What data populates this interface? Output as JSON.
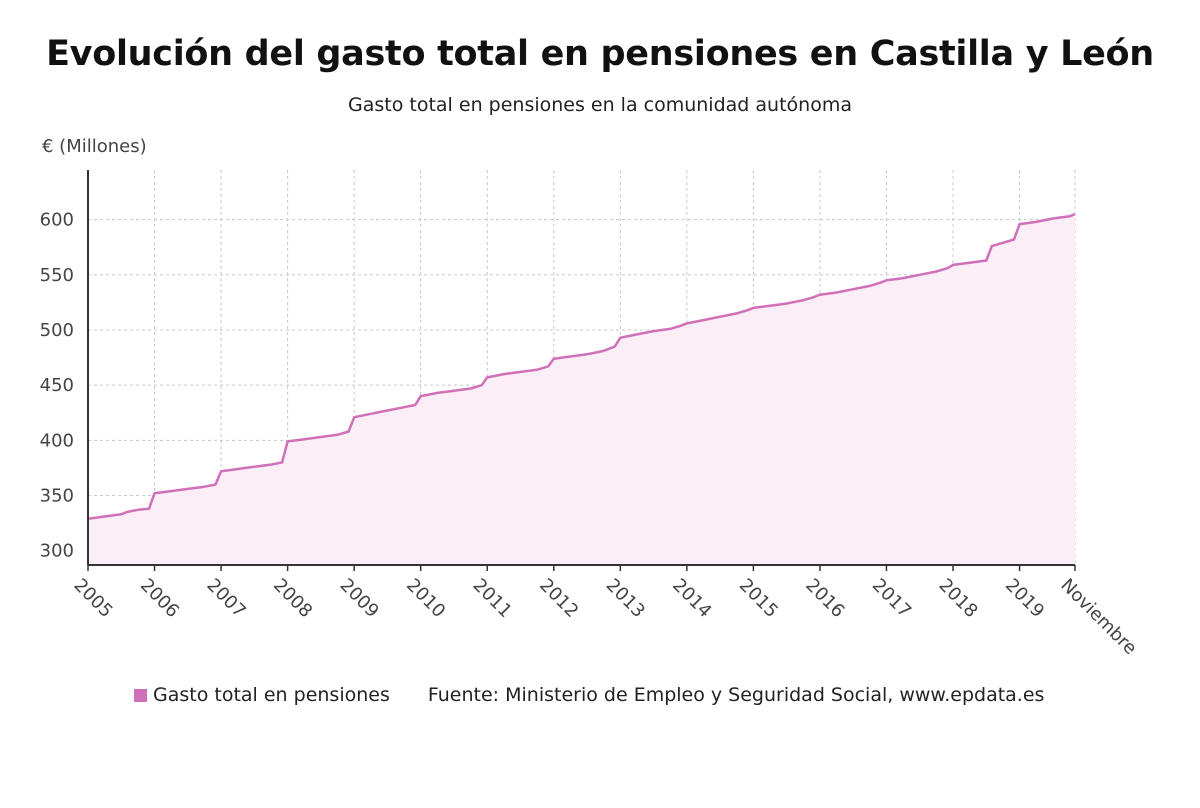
{
  "title": "Evolución del gasto total en pensiones en Castilla y León",
  "subtitle": "Gasto total en pensiones en la comunidad autónoma",
  "legend_label": "Gasto total en pensiones",
  "source": "Fuente: Ministerio de Empleo y Seguridad Social, www.epdata.es",
  "colors": {
    "line": "#d070b8",
    "fill": "#fbeef7",
    "grid": "#c8c8c8",
    "axis": "#333333",
    "text": "#444444"
  },
  "chart_data": {
    "type": "area",
    "ylabel": "€ (Millones)",
    "ylim": [
      287,
      645
    ],
    "yticks": [
      300,
      350,
      400,
      450,
      500,
      550,
      600
    ],
    "grid": true,
    "legend_position": "bottom",
    "xtick_labels": [
      "2005",
      "2006",
      "2007",
      "2008",
      "2009",
      "2010",
      "2011",
      "2012",
      "2013",
      "2014",
      "2015",
      "2016",
      "2017",
      "2018",
      "2019",
      "Noviembre"
    ],
    "series": [
      {
        "name": "Gasto total en pensiones",
        "x": [
          "2005-01",
          "2005-04",
          "2005-07",
          "2005-08",
          "2005-10",
          "2005-12",
          "2006-01",
          "2006-04",
          "2006-07",
          "2006-10",
          "2006-12",
          "2007-01",
          "2007-04",
          "2007-07",
          "2007-10",
          "2007-12",
          "2008-01",
          "2008-04",
          "2008-07",
          "2008-10",
          "2008-12",
          "2009-01",
          "2009-04",
          "2009-07",
          "2009-10",
          "2009-12",
          "2010-01",
          "2010-04",
          "2010-07",
          "2010-10",
          "2010-12",
          "2011-01",
          "2011-04",
          "2011-07",
          "2011-10",
          "2011-12",
          "2012-01",
          "2012-04",
          "2012-07",
          "2012-10",
          "2012-12",
          "2013-01",
          "2013-04",
          "2013-07",
          "2013-10",
          "2013-12",
          "2014-01",
          "2014-04",
          "2014-07",
          "2014-10",
          "2014-12",
          "2015-01",
          "2015-04",
          "2015-07",
          "2015-10",
          "2015-12",
          "2016-01",
          "2016-04",
          "2016-07",
          "2016-10",
          "2016-12",
          "2017-01",
          "2017-04",
          "2017-07",
          "2017-10",
          "2017-12",
          "2018-01",
          "2018-04",
          "2018-07",
          "2018-08",
          "2018-10",
          "2018-12",
          "2019-01",
          "2019-04",
          "2019-07",
          "2019-10",
          "2019-11"
        ],
        "values": [
          329,
          331,
          333,
          335,
          337,
          338,
          352,
          354,
          356,
          358,
          360,
          372,
          374,
          376,
          378,
          380,
          399,
          401,
          403,
          405,
          408,
          421,
          424,
          427,
          430,
          432,
          440,
          443,
          445,
          447,
          450,
          457,
          460,
          462,
          464,
          467,
          474,
          476,
          478,
          481,
          485,
          493,
          496,
          499,
          501,
          504,
          506,
          509,
          512,
          515,
          518,
          520,
          522,
          524,
          527,
          530,
          532,
          534,
          537,
          540,
          543,
          545,
          547,
          550,
          553,
          556,
          559,
          561,
          563,
          576,
          579,
          582,
          596,
          598,
          601,
          603,
          605
        ]
      }
    ]
  }
}
